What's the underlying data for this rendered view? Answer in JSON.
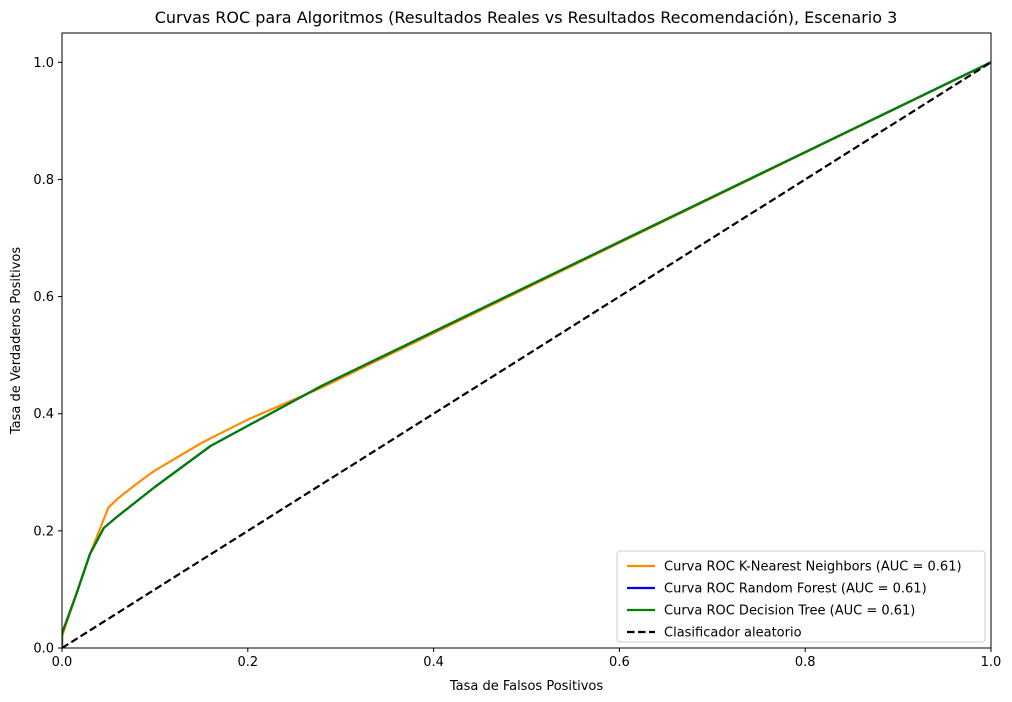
{
  "chart_data": {
    "type": "line",
    "title": "Curvas ROC para Algoritmos (Resultados Reales vs Resultados Recomendación), Escenario 3",
    "xlabel": "Tasa de Falsos Positivos",
    "ylabel": "Tasa de Verdaderos Positivos",
    "xlim": [
      0,
      1
    ],
    "ylim": [
      0,
      1.05
    ],
    "xticks": [
      "0.0",
      "0.2",
      "0.4",
      "0.6",
      "0.8",
      "1.0"
    ],
    "yticks": [
      "0.0",
      "0.2",
      "0.4",
      "0.6",
      "0.8",
      "1.0"
    ],
    "grid": false,
    "legend_position": "lower-right",
    "series": [
      {
        "name": "Curva ROC K-Nearest Neighbors (AUC = 0.61)",
        "color": "#ff8c00",
        "dash": "solid",
        "x": [
          0,
          0.0,
          0.015,
          0.03,
          0.04,
          0.05,
          0.06,
          0.08,
          0.1,
          0.15,
          0.2,
          0.28,
          1.0
        ],
        "y": [
          0,
          0.02,
          0.09,
          0.16,
          0.2,
          0.24,
          0.255,
          0.28,
          0.303,
          0.35,
          0.39,
          0.445,
          1.0
        ]
      },
      {
        "name": "Curva ROC Random Forest (AUC = 0.61)",
        "color": "#0000ff",
        "dash": "solid",
        "x": [
          0,
          0.0,
          0.015,
          0.03,
          0.045,
          0.06,
          0.1,
          0.16,
          0.28,
          1.0
        ],
        "y": [
          0,
          0.025,
          0.09,
          0.16,
          0.205,
          0.225,
          0.275,
          0.345,
          0.448,
          1.0
        ]
      },
      {
        "name": "Curva ROC Decision Tree (AUC = 0.61)",
        "color": "#008000",
        "dash": "solid",
        "x": [
          0,
          0.0,
          0.015,
          0.03,
          0.045,
          0.06,
          0.1,
          0.16,
          0.28,
          1.0
        ],
        "y": [
          0,
          0.025,
          0.09,
          0.16,
          0.205,
          0.225,
          0.275,
          0.345,
          0.448,
          1.0
        ]
      },
      {
        "name": "Clasificador aleatorio",
        "color": "#000000",
        "dash": "dashed",
        "x": [
          0,
          1
        ],
        "y": [
          0,
          1
        ]
      }
    ]
  }
}
